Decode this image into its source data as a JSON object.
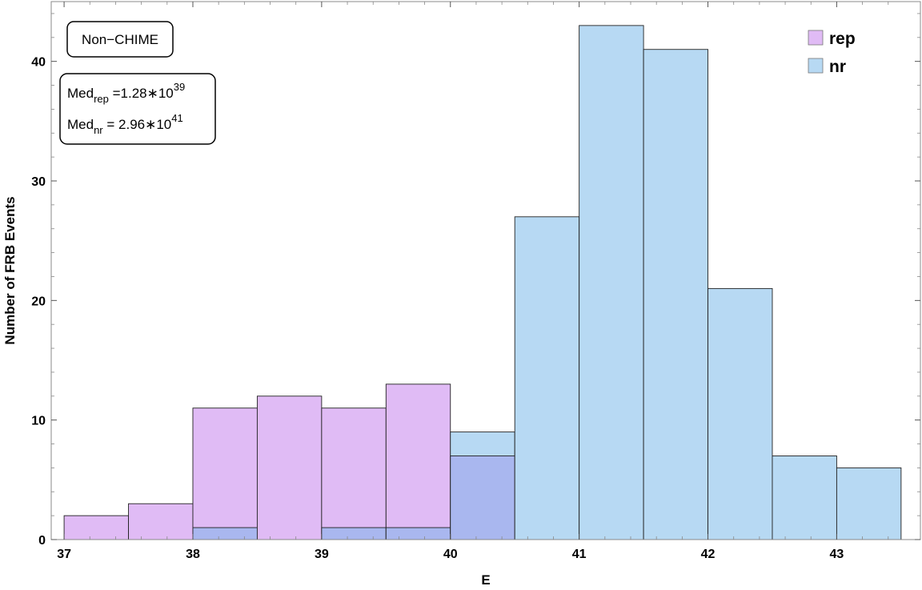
{
  "chart_data": {
    "type": "bar",
    "xlabel": "E",
    "ylabel": "Number of FRB Events",
    "xlim": [
      36.9,
      43.65
    ],
    "ylim": [
      0,
      45
    ],
    "xticks": [
      37,
      38,
      39,
      40,
      41,
      42,
      43
    ],
    "yticks": [
      0,
      10,
      20,
      30,
      40
    ],
    "bin_edges": [
      37.0,
      37.5,
      38.0,
      38.5,
      39.0,
      39.5,
      40.0,
      40.5,
      41.0,
      41.5,
      42.0,
      42.5,
      43.0,
      43.5
    ],
    "series": [
      {
        "name": "rep",
        "color": "#e0bbf5",
        "values": [
          2,
          3,
          11,
          12,
          11,
          13,
          7,
          0,
          0,
          0,
          0,
          0,
          0
        ]
      },
      {
        "name": "nr",
        "color": "#b7d9f3",
        "values": [
          0,
          0,
          1,
          0,
          1,
          1,
          9,
          27,
          43,
          41,
          21,
          7,
          6
        ]
      }
    ],
    "overlap_color": "#a9b7ef",
    "grid": false,
    "legend_position": "top-right",
    "annotations": {
      "sample": "Non−CHIME",
      "med_rep": {
        "prefix": "Med",
        "sub": "rep",
        "value": " =1.28∗10",
        "exp": "39"
      },
      "med_nr": {
        "prefix": "Med",
        "sub": "nr",
        "value": " = 2.96∗10",
        "exp": "41"
      }
    }
  }
}
